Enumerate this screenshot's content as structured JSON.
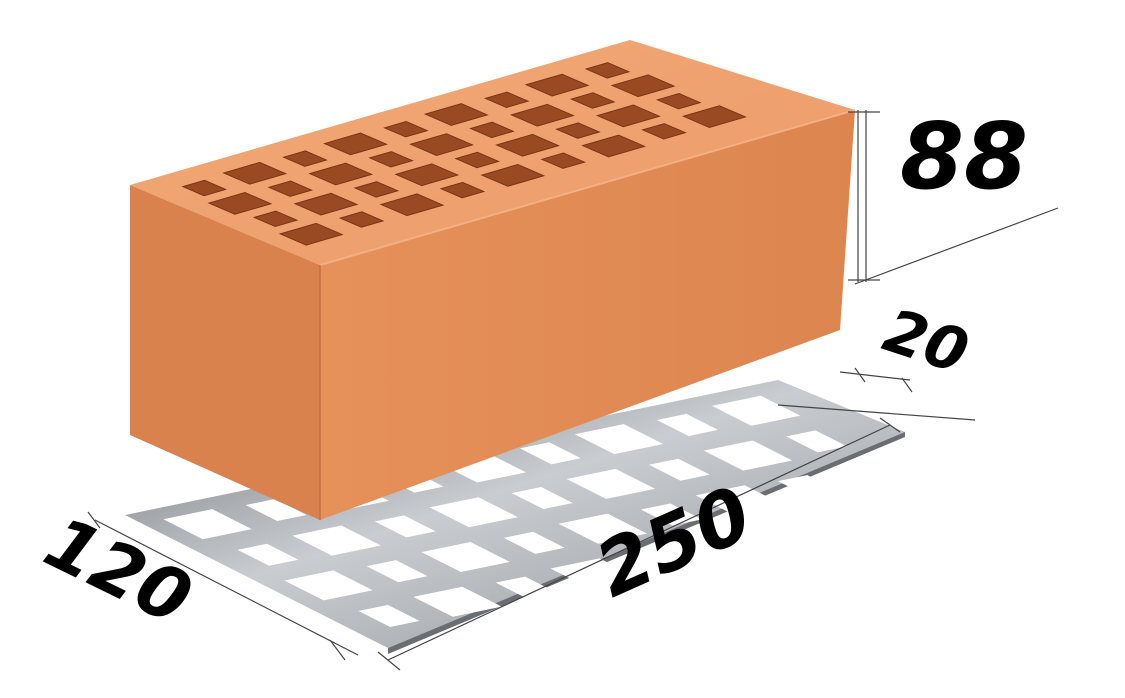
{
  "dimensions": {
    "height": "88",
    "gap": "20",
    "length": "250",
    "width": "120"
  },
  "colors": {
    "brick_front": "#e08a55",
    "brick_top": "#f0a070",
    "brick_side": "#cf7a48",
    "hole": "#9a4a22",
    "plate": "#a9adb2",
    "plate_dark": "#7c8086",
    "dim_line": "#444444"
  }
}
